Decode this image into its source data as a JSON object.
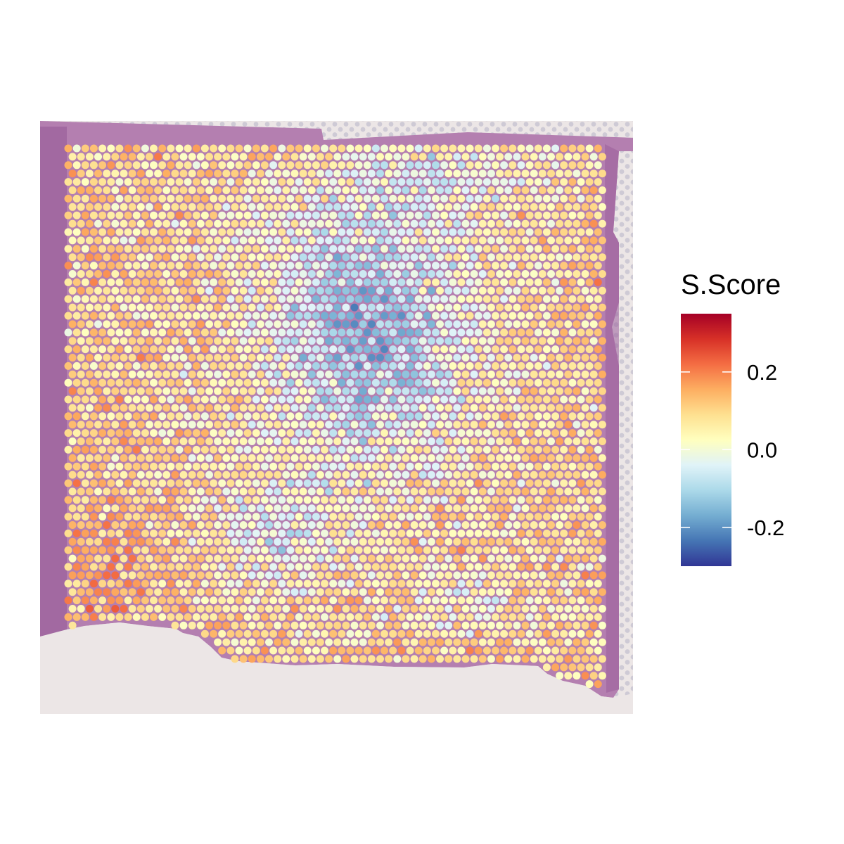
{
  "chart_data": {
    "type": "heatmap",
    "subtype": "spatial-spot-map",
    "title": "",
    "xlabel": "",
    "ylabel": "",
    "background": "H&E tissue section image",
    "spot_grid": {
      "columns": 64,
      "rows": 65,
      "layout": "hexagonal"
    },
    "legend": {
      "title": "S.Score",
      "placement": "right",
      "range": [
        -0.3,
        0.35
      ],
      "ticks": [
        {
          "value": 0.2,
          "label": "0.2"
        },
        {
          "value": 0.0,
          "label": "0.0"
        },
        {
          "value": -0.2,
          "label": "-0.2"
        }
      ],
      "colormap": "RdYlBu (reversed)",
      "color_stops": [
        "#313695",
        "#4575b4",
        "#74add1",
        "#abd9e9",
        "#e0f3f8",
        "#ffffbf",
        "#fee090",
        "#fdae61",
        "#f46d43",
        "#d73027",
        "#a50026"
      ]
    },
    "colors": {
      "tissue": "#b47fb0",
      "tissue_dark": "#9a5f9b",
      "slide_background": "#ece6e6",
      "fiducial_spot": "#c9c5d2"
    }
  }
}
